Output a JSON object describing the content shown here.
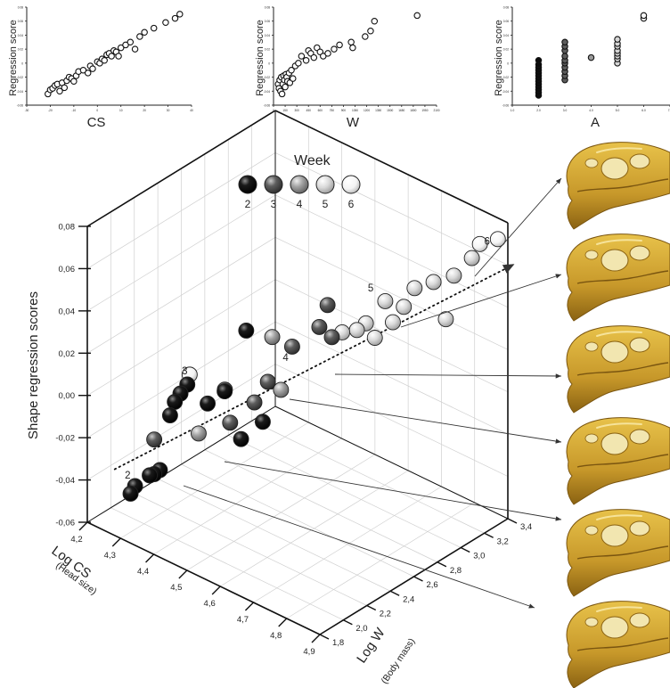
{
  "colors": {
    "week2": "#0b0b0b",
    "week3": "#5c5c5c",
    "week4": "#9a9a9a",
    "week5": "#d6d6d6",
    "week6": "#f7f7f7",
    "skull_fill": "#d9b23a",
    "skull_shade": "#a8791a",
    "arrow": "#333333"
  },
  "legend": {
    "title": "Week",
    "weeks": [
      "2",
      "3",
      "4",
      "5",
      "6"
    ]
  },
  "skull_count": 6,
  "chart_data": [
    {
      "type": "scatter",
      "name": "cs",
      "xlabel": "CS",
      "ylabel": "Regression score",
      "xticks": [
        "-30",
        "-20",
        "-10",
        "0",
        "10",
        "20",
        "30",
        "40"
      ],
      "yticks": [
        "-0.06",
        "-0.04",
        "-0.02",
        "0",
        "0.02",
        "0.04",
        "0.06",
        "0.08"
      ],
      "xlim": [
        -30,
        40
      ],
      "ylim": [
        -0.06,
        0.08
      ],
      "marker": "open",
      "x": [
        -21,
        -20,
        -19,
        -18,
        -17,
        -16,
        -15,
        -14,
        -13,
        -12,
        -11,
        -10,
        -9,
        -8,
        -6,
        -4,
        -3,
        -2,
        0,
        1,
        2,
        3,
        4,
        5,
        6,
        7,
        8,
        9,
        10,
        12,
        14,
        16,
        18,
        20,
        24,
        29,
        33,
        35
      ],
      "y": [
        -0.044,
        -0.038,
        -0.036,
        -0.032,
        -0.03,
        -0.04,
        -0.028,
        -0.035,
        -0.025,
        -0.02,
        -0.022,
        -0.026,
        -0.018,
        -0.012,
        -0.01,
        -0.014,
        -0.004,
        -0.008,
        0.002,
        0.0,
        0.006,
        0.004,
        0.012,
        0.014,
        0.01,
        0.018,
        0.016,
        0.01,
        0.022,
        0.026,
        0.03,
        0.02,
        0.038,
        0.044,
        0.05,
        0.058,
        0.064,
        0.07
      ]
    },
    {
      "type": "scatter",
      "name": "w",
      "xlabel": "W",
      "ylabel": "Regression score",
      "xticks": [
        "0",
        "150",
        "300",
        "450",
        "600",
        "750",
        "900",
        "1050",
        "1200",
        "1350",
        "1500",
        "1650",
        "1800",
        "1950",
        "2100"
      ],
      "yticks": [
        "-0.06",
        "-0.04",
        "-0.02",
        "0",
        "0.02",
        "0.04",
        "0.06",
        "0.08"
      ],
      "xlim": [
        0,
        2100
      ],
      "ylim": [
        -0.06,
        0.08
      ],
      "marker": "open",
      "x": [
        60,
        70,
        80,
        90,
        100,
        110,
        120,
        130,
        140,
        150,
        160,
        170,
        180,
        200,
        210,
        230,
        250,
        280,
        320,
        360,
        420,
        450,
        480,
        520,
        560,
        600,
        640,
        700,
        780,
        850,
        1000,
        1020,
        1180,
        1250,
        1300,
        1850
      ],
      "y": [
        -0.03,
        -0.036,
        -0.024,
        -0.04,
        -0.02,
        -0.044,
        -0.03,
        -0.018,
        -0.024,
        -0.034,
        -0.016,
        -0.02,
        -0.026,
        -0.014,
        -0.028,
        -0.01,
        -0.022,
        -0.004,
        0.0,
        0.01,
        0.004,
        0.018,
        0.014,
        0.008,
        0.022,
        0.016,
        0.01,
        0.014,
        0.02,
        0.026,
        0.03,
        0.022,
        0.038,
        0.046,
        0.06,
        0.068
      ]
    },
    {
      "type": "scatter",
      "name": "a",
      "xlabel": "A",
      "ylabel": "Regression score",
      "xticks": [
        "1.0",
        "2.0",
        "3.0",
        "4.0",
        "5.0",
        "6.0",
        "7.0"
      ],
      "yticks": [
        "-0.06",
        "-0.04",
        "-0.02",
        "0",
        "0.02",
        "0.04",
        "0.06",
        "0.08"
      ],
      "xlim": [
        1,
        7
      ],
      "ylim": [
        -0.06,
        0.08
      ],
      "marker": "week-shaded",
      "x": [
        2,
        2,
        2,
        2,
        2,
        2,
        2,
        2,
        2,
        2,
        2,
        2,
        2,
        3,
        3,
        3,
        3,
        3,
        3,
        3,
        3,
        3,
        3,
        4,
        5,
        5,
        5,
        5,
        5,
        5,
        5,
        5,
        6,
        6
      ],
      "y": [
        -0.046,
        -0.042,
        -0.038,
        -0.034,
        -0.03,
        -0.026,
        -0.022,
        -0.018,
        -0.014,
        -0.01,
        -0.006,
        -0.002,
        0.004,
        -0.024,
        -0.018,
        -0.012,
        -0.006,
        0.0,
        0.004,
        0.01,
        0.018,
        0.024,
        0.03,
        0.008,
        0.0,
        0.006,
        0.01,
        0.014,
        0.018,
        0.024,
        0.028,
        0.034,
        0.064,
        0.068
      ],
      "week": [
        2,
        2,
        2,
        2,
        2,
        2,
        2,
        2,
        2,
        2,
        2,
        2,
        2,
        3,
        3,
        3,
        3,
        3,
        3,
        3,
        3,
        3,
        3,
        4,
        5,
        5,
        5,
        5,
        5,
        5,
        5,
        5,
        6,
        6
      ]
    },
    {
      "type": "scatter3d",
      "name": "main",
      "zlabel": "Shape regression scores",
      "xlabel": "Log CS",
      "xlabel_sub": "(Head size)",
      "ylabel": "Log W",
      "ylabel_sub": "(Body mass)",
      "zticks": [
        "-0,06",
        "-0,04",
        "-0,02",
        "0,00",
        "0,02",
        "0,04",
        "0,06",
        "0,08"
      ],
      "xticks": [
        "4,2",
        "4,3",
        "4,4",
        "4,5",
        "4,6",
        "4,7",
        "4,8",
        "4,9"
      ],
      "yticks": [
        "1,8",
        "2,0",
        "2,2",
        "2,4",
        "2,6",
        "2,8",
        "3,0",
        "3,2",
        "3,4"
      ],
      "zlim": [
        -0.06,
        0.08
      ],
      "xlim": [
        4.2,
        4.9
      ],
      "ylim": [
        1.8,
        3.4
      ],
      "week_labels": [
        {
          "text": "2",
          "cs": 4.26,
          "w": 1.95,
          "z": -0.04
        },
        {
          "text": "3",
          "cs": 4.29,
          "w": 2.35,
          "z": -0.002
        },
        {
          "text": "4",
          "cs": 4.47,
          "w": 2.7,
          "z": 0.006
        },
        {
          "text": "5",
          "cs": 4.62,
          "w": 3.0,
          "z": 0.04
        },
        {
          "text": "6",
          "cs": 4.85,
          "w": 3.34,
          "z": 0.068
        }
      ],
      "trend": {
        "from": {
          "cs": 4.24,
          "w": 1.92,
          "z": -0.036
        },
        "to": {
          "cs": 4.92,
          "w": 3.4,
          "z": 0.062
        }
      },
      "points": [
        {
          "cs": 4.27,
          "w": 1.97,
          "z": -0.047,
          "week": 2
        },
        {
          "cs": 4.28,
          "w": 1.98,
          "z": -0.043,
          "week": 2
        },
        {
          "cs": 4.31,
          "w": 2.02,
          "z": -0.037,
          "week": 2
        },
        {
          "cs": 4.32,
          "w": 2.03,
          "z": -0.036,
          "week": 2
        },
        {
          "cs": 4.33,
          "w": 2.05,
          "z": -0.034,
          "week": 2
        },
        {
          "cs": 4.29,
          "w": 2.25,
          "z": -0.018,
          "week": 2
        },
        {
          "cs": 4.29,
          "w": 2.29,
          "z": -0.013,
          "week": 2
        },
        {
          "cs": 4.3,
          "w": 2.31,
          "z": -0.009,
          "week": 2
        },
        {
          "cs": 4.31,
          "w": 2.34,
          "z": -0.005,
          "week": 2
        },
        {
          "cs": 4.35,
          "w": 2.4,
          "z": -0.013,
          "week": 2
        },
        {
          "cs": 4.38,
          "w": 2.46,
          "z": -0.007,
          "week": 2
        },
        {
          "cs": 4.44,
          "w": 2.43,
          "z": -0.024,
          "week": 2
        },
        {
          "cs": 4.47,
          "w": 2.53,
          "z": -0.017,
          "week": 2
        },
        {
          "cs": 4.36,
          "w": 2.7,
          "z": 0.012,
          "week": 2
        },
        {
          "cs": 4.26,
          "w": 2.2,
          "z": -0.03,
          "week": 3
        },
        {
          "cs": 4.4,
          "w": 2.45,
          "z": -0.02,
          "week": 3
        },
        {
          "cs": 4.37,
          "w": 2.49,
          "z": -0.008,
          "week": 3
        },
        {
          "cs": 4.42,
          "w": 2.6,
          "z": -0.014,
          "week": 3
        },
        {
          "cs": 4.45,
          "w": 2.63,
          "z": -0.003,
          "week": 3
        },
        {
          "cs": 4.47,
          "w": 2.78,
          "z": 0.01,
          "week": 3
        },
        {
          "cs": 4.52,
          "w": 2.87,
          "z": 0.02,
          "week": 3
        },
        {
          "cs": 4.52,
          "w": 2.94,
          "z": 0.028,
          "week": 3
        },
        {
          "cs": 4.54,
          "w": 2.92,
          "z": 0.015,
          "week": 3
        },
        {
          "cs": 4.5,
          "w": 2.6,
          "z": -0.002,
          "week": 4
        },
        {
          "cs": 4.33,
          "w": 2.38,
          "z": -0.028,
          "week": 4
        },
        {
          "cs": 4.41,
          "w": 2.78,
          "z": 0.01,
          "week": 4
        },
        {
          "cs": 4.55,
          "w": 2.98,
          "z": 0.016,
          "week": 5
        },
        {
          "cs": 4.58,
          "w": 3.02,
          "z": 0.018,
          "week": 5
        },
        {
          "cs": 4.6,
          "w": 3.04,
          "z": 0.022,
          "week": 5
        },
        {
          "cs": 4.62,
          "w": 3.06,
          "z": 0.016,
          "week": 5
        },
        {
          "cs": 4.66,
          "w": 3.1,
          "z": 0.025,
          "week": 5
        },
        {
          "cs": 4.7,
          "w": 3.08,
          "z": 0.036,
          "week": 5
        },
        {
          "cs": 4.63,
          "w": 3.12,
          "z": 0.032,
          "week": 5
        },
        {
          "cs": 4.69,
          "w": 3.2,
          "z": 0.04,
          "week": 5
        },
        {
          "cs": 4.74,
          "w": 3.22,
          "z": 0.046,
          "week": 5
        },
        {
          "cs": 4.77,
          "w": 3.24,
          "z": 0.03,
          "week": 5
        },
        {
          "cs": 4.78,
          "w": 3.28,
          "z": 0.05,
          "week": 5
        },
        {
          "cs": 4.82,
          "w": 3.32,
          "z": 0.06,
          "week": 5
        },
        {
          "cs": 4.83,
          "w": 3.36,
          "z": 0.066,
          "week": 6
        },
        {
          "cs": 4.87,
          "w": 3.4,
          "z": 0.07,
          "week": 6
        },
        {
          "cs": 4.31,
          "w": 2.36,
          "z": -0.001,
          "week": 6
        }
      ]
    }
  ]
}
